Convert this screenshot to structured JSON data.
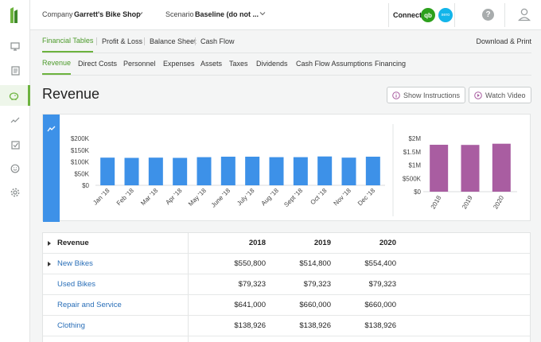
{
  "topbar": {
    "company_label": "Company",
    "company_value": "Garrett's Bike Shop",
    "scenario_label": "Scenario",
    "scenario_value": "Baseline (do not ...",
    "connect_label": "Connect",
    "qb_badge": "qb",
    "xero_badge": "xero",
    "help_glyph": "?"
  },
  "rail": {
    "items": [
      {
        "icon": "monitor-icon"
      },
      {
        "icon": "document-icon"
      },
      {
        "icon": "piggy-bank-icon",
        "active": true
      },
      {
        "icon": "trend-line-icon"
      },
      {
        "icon": "checklist-icon"
      },
      {
        "icon": "smiley-icon"
      },
      {
        "icon": "gear-icon"
      }
    ]
  },
  "nav_primary": {
    "items": [
      "Financial Tables",
      "Profit & Loss",
      "Balance Sheet",
      "Cash Flow"
    ],
    "active": "Financial Tables",
    "right_action": "Download & Print"
  },
  "nav_secondary": {
    "items": [
      "Revenue",
      "Direct Costs",
      "Personnel",
      "Expenses",
      "Assets",
      "Taxes",
      "Dividends",
      "Cash Flow Assumptions",
      "Financing"
    ],
    "active": "Revenue"
  },
  "page": {
    "title": "Revenue",
    "show_instructions": "Show Instructions",
    "watch_video": "Watch Video"
  },
  "chart_data": [
    {
      "type": "bar",
      "categories": [
        "Jan '18",
        "Feb '18",
        "Mar '18",
        "Apr '18",
        "May '18",
        "June '18",
        "July '18",
        "Aug '18",
        "Sept '18",
        "Oct '18",
        "Nov '18",
        "Dec '18"
      ],
      "values": [
        118000,
        117000,
        118000,
        117000,
        120000,
        122000,
        122000,
        120000,
        120000,
        123000,
        118000,
        122000
      ],
      "ylim": [
        0,
        200000
      ],
      "y_ticks": [
        "$0",
        "$50K",
        "$100K",
        "$150K",
        "$200K"
      ],
      "color": "#3d91e8"
    },
    {
      "type": "bar",
      "categories": [
        "2018",
        "2019",
        "2020"
      ],
      "values": [
        1761000,
        1755000,
        1800000
      ],
      "ylim": [
        0,
        2000000
      ],
      "y_ticks": [
        "$0",
        "$500K",
        "$1M",
        "$1.5M",
        "$2M"
      ],
      "color": "#a95da1"
    }
  ],
  "table": {
    "header": {
      "label": "Revenue",
      "y1": "2018",
      "y2": "2019",
      "y3": "2020"
    },
    "rows": [
      {
        "label": "New Bikes",
        "y1": "$550,800",
        "y2": "$514,800",
        "y3": "$554,400",
        "expandable": true
      },
      {
        "label": "Used Bikes",
        "y1": "$79,323",
        "y2": "$79,323",
        "y3": "$79,323",
        "expandable": false
      },
      {
        "label": "Repair and Service",
        "y1": "$641,000",
        "y2": "$660,000",
        "y3": "$660,000",
        "expandable": false
      },
      {
        "label": "Clothing",
        "y1": "$138,926",
        "y2": "$138,926",
        "y3": "$138,926",
        "expandable": false
      }
    ]
  },
  "colors": {
    "accent_green": "#6cb33e",
    "link_blue": "#2a6fb8",
    "monthly_bar": "#3d91e8",
    "annual_bar": "#a95da1"
  }
}
